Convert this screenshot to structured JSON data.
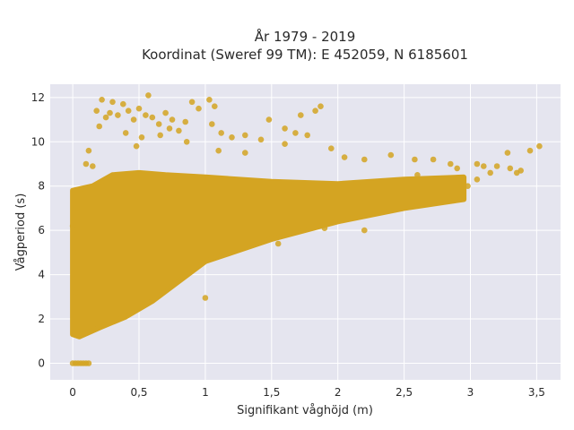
{
  "chart_data": {
    "type": "scatter",
    "title_line1": "År 1979 - 2019",
    "title_line2": "Koordinat (Sweref 99 TM): E 452059, N 6185601",
    "xlabel": "Signifikant våghöjd (m)",
    "ylabel": "Vågperiod (s)",
    "xlim": [
      -0.17,
      3.68
    ],
    "ylim": [
      -0.75,
      12.6
    ],
    "x_ticks": [
      0,
      0.5,
      1,
      1.5,
      2,
      2.5,
      3,
      3.5
    ],
    "x_tick_labels": [
      "0",
      "0,5",
      "1",
      "1,5",
      "2",
      "2,5",
      "3",
      "3,5"
    ],
    "y_ticks": [
      0,
      2,
      4,
      6,
      8,
      10,
      12
    ],
    "y_tick_labels": [
      "0",
      "2",
      "4",
      "6",
      "8",
      "10",
      "12"
    ],
    "grid": true,
    "colors": {
      "marker": "#d4a422",
      "plot_bg": "#e5e5ef",
      "grid": "#ffffff"
    },
    "dense_region": {
      "description_points": [
        [
          0.0,
          1.3
        ],
        [
          0.0,
          7.8
        ],
        [
          0.15,
          8.0
        ],
        [
          0.3,
          8.5
        ],
        [
          0.5,
          8.6
        ],
        [
          0.7,
          8.5
        ],
        [
          1.0,
          8.4
        ],
        [
          1.5,
          8.2
        ],
        [
          2.0,
          8.1
        ],
        [
          2.5,
          8.3
        ],
        [
          2.95,
          8.4
        ],
        [
          2.95,
          7.4
        ],
        [
          2.5,
          7.0
        ],
        [
          2.0,
          6.4
        ],
        [
          1.5,
          5.6
        ],
        [
          1.2,
          5.0
        ],
        [
          1.0,
          4.6
        ],
        [
          0.8,
          3.7
        ],
        [
          0.6,
          2.8
        ],
        [
          0.4,
          2.1
        ],
        [
          0.2,
          1.6
        ],
        [
          0.05,
          1.2
        ]
      ]
    },
    "sparse_points": [
      [
        0.22,
        11.9
      ],
      [
        0.3,
        11.8
      ],
      [
        0.38,
        11.7
      ],
      [
        0.28,
        11.3
      ],
      [
        0.34,
        11.2
      ],
      [
        0.42,
        11.4
      ],
      [
        0.5,
        11.5
      ],
      [
        0.55,
        11.2
      ],
      [
        0.18,
        11.4
      ],
      [
        0.25,
        11.1
      ],
      [
        0.46,
        11.0
      ],
      [
        0.6,
        11.1
      ],
      [
        0.65,
        10.8
      ],
      [
        0.7,
        11.3
      ],
      [
        0.75,
        11.0
      ],
      [
        0.8,
        10.5
      ],
      [
        0.85,
        10.9
      ],
      [
        0.9,
        11.8
      ],
      [
        0.95,
        11.5
      ],
      [
        1.03,
        11.9
      ],
      [
        1.07,
        11.6
      ],
      [
        0.57,
        12.1
      ],
      [
        0.66,
        10.3
      ],
      [
        0.73,
        10.6
      ],
      [
        0.2,
        10.7
      ],
      [
        0.4,
        10.4
      ],
      [
        0.52,
        10.2
      ],
      [
        0.86,
        10.0
      ],
      [
        1.12,
        10.4
      ],
      [
        1.2,
        10.2
      ],
      [
        1.3,
        10.3
      ],
      [
        1.42,
        10.1
      ],
      [
        1.48,
        11.0
      ],
      [
        1.6,
        10.6
      ],
      [
        1.68,
        10.4
      ],
      [
        1.72,
        11.2
      ],
      [
        1.83,
        11.4
      ],
      [
        1.87,
        11.6
      ],
      [
        1.77,
        10.3
      ],
      [
        1.95,
        9.7
      ],
      [
        1.6,
        9.9
      ],
      [
        1.1,
        9.6
      ],
      [
        1.3,
        9.5
      ],
      [
        1.05,
        10.8
      ],
      [
        0.48,
        9.8
      ],
      [
        0.12,
        9.6
      ],
      [
        0.1,
        9.0
      ],
      [
        0.15,
        8.9
      ],
      [
        2.05,
        9.3
      ],
      [
        2.2,
        9.2
      ],
      [
        2.4,
        9.4
      ],
      [
        2.58,
        9.2
      ],
      [
        2.72,
        9.2
      ],
      [
        2.85,
        9.0
      ],
      [
        3.05,
        9.0
      ],
      [
        3.1,
        8.9
      ],
      [
        3.2,
        8.9
      ],
      [
        3.3,
        8.8
      ],
      [
        3.38,
        8.7
      ],
      [
        3.45,
        9.6
      ],
      [
        3.52,
        9.8
      ],
      [
        3.28,
        9.5
      ],
      [
        3.15,
        8.6
      ],
      [
        3.05,
        8.3
      ],
      [
        2.98,
        8.0
      ],
      [
        1.0,
        2.95
      ],
      [
        2.2,
        6.0
      ],
      [
        1.9,
        6.1
      ],
      [
        1.55,
        5.4
      ],
      [
        3.35,
        8.6
      ],
      [
        2.9,
        8.8
      ],
      [
        2.6,
        8.5
      ],
      [
        0.05,
        7.5
      ],
      [
        0.03,
        7.0
      ],
      [
        0.0,
        6.2
      ],
      [
        0.01,
        5.0
      ],
      [
        0.02,
        3.2
      ],
      [
        0.0,
        0
      ],
      [
        0.02,
        0
      ],
      [
        0.04,
        0
      ],
      [
        0.06,
        0
      ],
      [
        0.08,
        0
      ],
      [
        0.1,
        0
      ],
      [
        0.12,
        0
      ]
    ]
  }
}
